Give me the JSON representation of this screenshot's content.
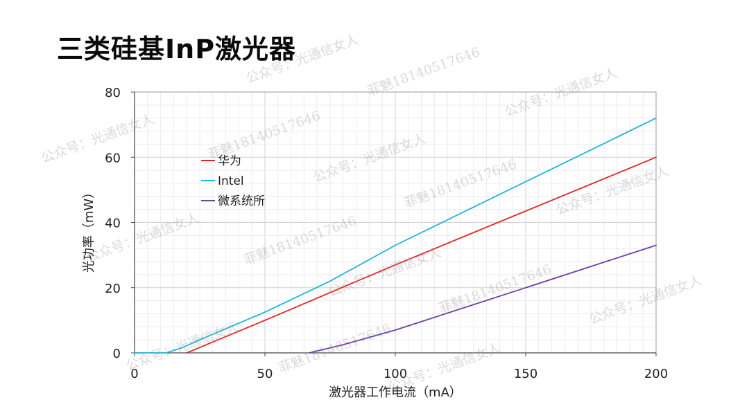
{
  "slide": {
    "title": "三类硅基InP激光器"
  },
  "watermarks": [
    "公众号：光通信女人",
    "菲魅18140517646"
  ],
  "chart_data": {
    "type": "line",
    "xlabel": "激光器工作电流（mA）",
    "ylabel": "光功率（mW）",
    "xlim": [
      0,
      200
    ],
    "ylim": [
      0,
      80
    ],
    "xticks": [
      0,
      50,
      100,
      150,
      200
    ],
    "yticks": [
      0,
      20,
      40,
      60,
      80
    ],
    "grid": true,
    "legend_position": "upper-left",
    "series": [
      {
        "name": "华为",
        "color": "#e0262a",
        "points": [
          [
            20,
            0
          ],
          [
            50,
            10
          ],
          [
            100,
            27
          ],
          [
            150,
            43.5
          ],
          [
            200,
            60
          ]
        ]
      },
      {
        "name": "Intel",
        "color": "#1fb5d6",
        "points": [
          [
            0,
            0
          ],
          [
            12,
            0
          ],
          [
            18,
            1.5
          ],
          [
            25,
            4
          ],
          [
            50,
            12.5
          ],
          [
            75,
            22
          ],
          [
            100,
            33
          ],
          [
            150,
            52.5
          ],
          [
            200,
            72
          ]
        ]
      },
      {
        "name": "微系统所",
        "color": "#6a3fa8",
        "points": [
          [
            67,
            0
          ],
          [
            80,
            2.5
          ],
          [
            100,
            7
          ],
          [
            125,
            13.5
          ],
          [
            150,
            20
          ],
          [
            175,
            26.5
          ],
          [
            200,
            33
          ]
        ]
      }
    ]
  }
}
